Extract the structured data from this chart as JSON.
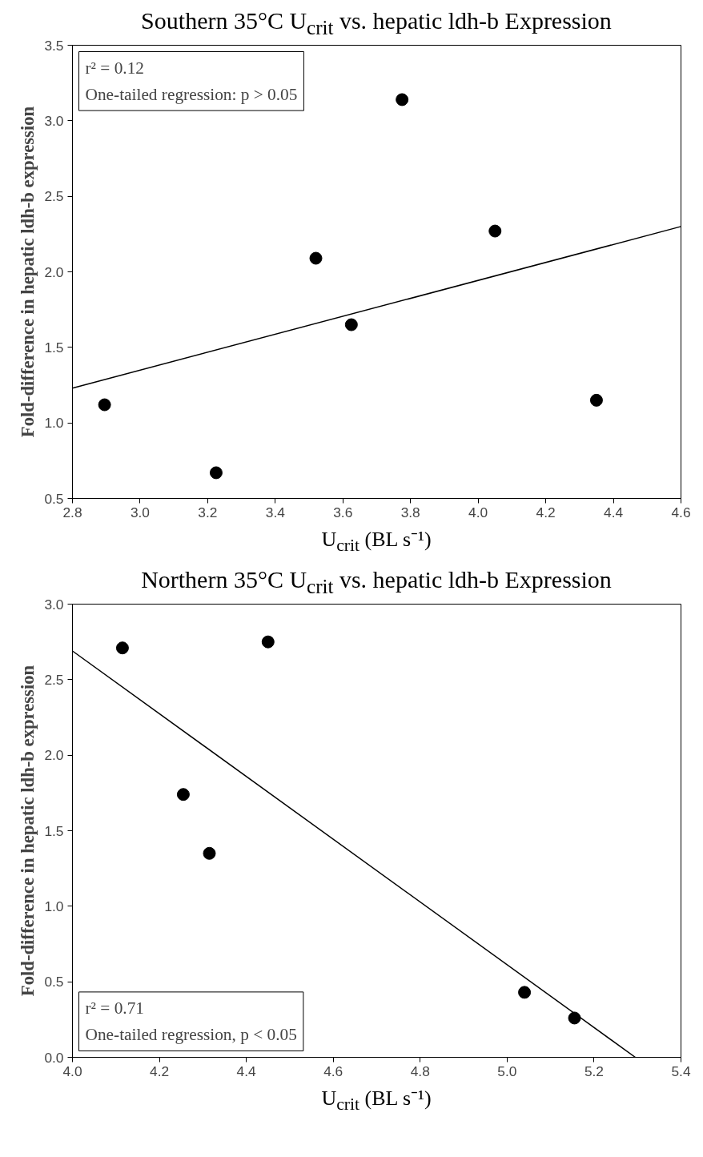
{
  "chart_data": [
    {
      "type": "scatter",
      "title": "Southern 35°C U$_{crit}$ vs. hepatic ldh-b Expression",
      "xlabel": "U$_{crit}$ (BL s⁻¹)",
      "ylabel": "Fold-difference in hepatic ldh-b expression",
      "annotations": [
        "r² = 0.12",
        "One-tailed regression: p > 0.05"
      ],
      "xlim": [
        2.8,
        4.6
      ],
      "xticks": [
        2.8,
        {
          "value": 3,
          "label": "3.0"
        },
        3.2,
        3.4,
        3.6,
        3.8,
        {
          "value": 4,
          "label": "4.0"
        },
        4.2,
        4.4,
        4.6
      ],
      "ylim": [
        0.5,
        3.5
      ],
      "yticks": [
        0.5,
        {
          "value": 1,
          "label": "1.0"
        },
        1.5,
        {
          "value": 2,
          "label": "2.0"
        },
        2.5,
        {
          "value": 3,
          "label": "3.0"
        },
        3.5
      ],
      "grid": false,
      "series": [
        {
          "color": "#000000",
          "marker": "circle",
          "x": [
            2.895,
            3.225,
            3.52,
            3.625,
            3.775,
            4.05,
            4.35
          ],
          "values": [
            1.12,
            0.67,
            2.09,
            1.65,
            3.14,
            2.27,
            1.15
          ]
        },
        {
          "type": "line",
          "color": "#000000",
          "x": [
            2.8,
            4.6
          ],
          "values": [
            1.23,
            2.3
          ]
        }
      ]
    },
    {
      "type": "scatter",
      "title": "Northern 35°C U$_{crit}$ vs. hepatic ldh-b Expression",
      "xlabel": "U$_{crit}$ (BL s⁻¹)",
      "ylabel": "Fold-difference in hepatic ldh-b expression",
      "annotations": [
        "r² = 0.71",
        "One-tailed regression, p < 0.05"
      ],
      "xlim": [
        4.0,
        5.4
      ],
      "xticks": [
        {
          "value": 4,
          "label": "4.0"
        },
        4.2,
        4.4,
        4.6,
        4.8,
        {
          "value": 5,
          "label": "5.0"
        },
        5.2,
        5.4
      ],
      "ylim": [
        0,
        3
      ],
      "yticks": [
        {
          "value": 0,
          "label": "0.0"
        },
        0.5,
        {
          "value": 1,
          "label": "1.0"
        },
        1.5,
        {
          "value": 2,
          "label": "2.0"
        },
        2.5,
        {
          "value": 3,
          "label": "3.0"
        }
      ],
      "grid": false,
      "series": [
        {
          "color": "#000000",
          "marker": "circle",
          "x": [
            4.115,
            4.255,
            4.315,
            4.45,
            5.04,
            5.155
          ],
          "values": [
            2.71,
            1.74,
            1.35,
            2.75,
            0.43,
            0.26
          ]
        },
        {
          "type": "line",
          "color": "#000000",
          "x": [
            4.0,
            5.295
          ],
          "values": [
            2.69,
            0.0
          ]
        }
      ]
    }
  ]
}
